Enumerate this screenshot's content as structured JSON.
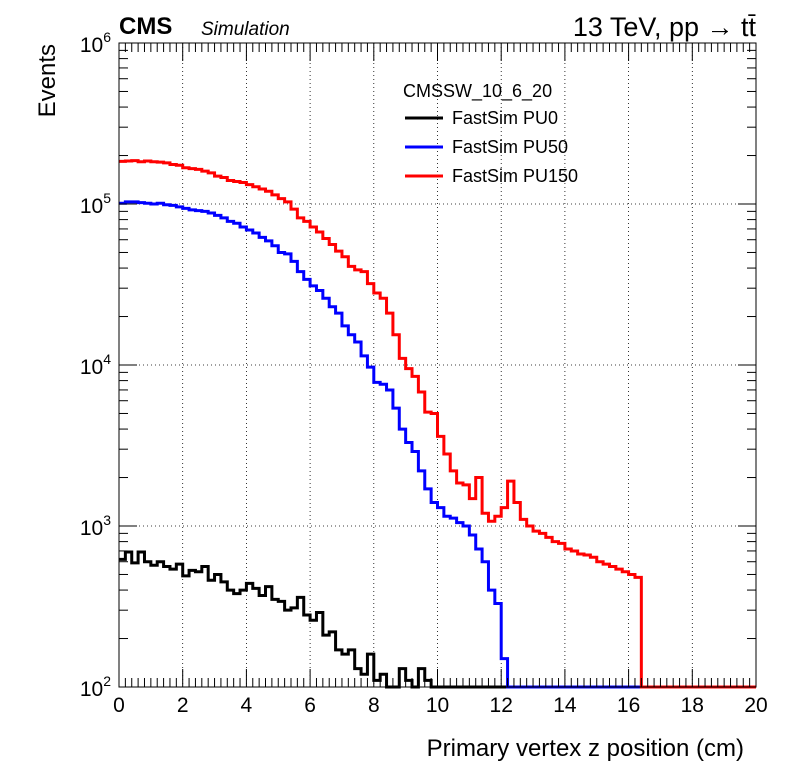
{
  "chart_data": {
    "type": "histogram",
    "experiment": "CMS",
    "experiment_note": "Simulation",
    "energy_label": "13 TeV, pp → tt̄",
    "xlabel": "Primary vertex z position (cm)",
    "ylabel": "Events",
    "xlim": [
      0,
      20
    ],
    "ylim": [
      100,
      1000000
    ],
    "yscale": "log",
    "grid": true,
    "x_ticks": [
      "0",
      "2",
      "4",
      "6",
      "8",
      "10",
      "12",
      "14",
      "16",
      "18",
      "20"
    ],
    "y_ticks": [
      {
        "base": "10",
        "exp": "2",
        "value": 100
      },
      {
        "base": "10",
        "exp": "3",
        "value": 1000
      },
      {
        "base": "10",
        "exp": "4",
        "value": 10000
      },
      {
        "base": "10",
        "exp": "5",
        "value": 100000
      },
      {
        "base": "10",
        "exp": "6",
        "value": 1000000
      }
    ],
    "legend_header": "CMSSW_10_6_20",
    "legend_position": "top-center",
    "bin_width": 0.2,
    "series": [
      {
        "name": "FastSim PU0",
        "color": "#000000",
        "values": [
          620,
          690,
          590,
          690,
          600,
          570,
          600,
          560,
          540,
          580,
          490,
          530,
          520,
          560,
          460,
          500,
          450,
          400,
          380,
          400,
          440,
          410,
          370,
          420,
          350,
          340,
          300,
          310,
          360,
          280,
          260,
          290,
          210,
          220,
          170,
          160,
          170,
          130,
          120,
          160,
          110,
          120,
          100,
          100,
          130,
          110,
          100,
          130,
          110,
          80
        ]
      },
      {
        "name": "FastSim PU50",
        "color": "#0000ff",
        "values": [
          101000,
          103000,
          103000,
          102000,
          101000,
          100000,
          101000,
          99000,
          98000,
          96000,
          94000,
          92000,
          91000,
          90000,
          88000,
          85000,
          82000,
          78000,
          76000,
          72000,
          69000,
          66000,
          62000,
          59000,
          55000,
          50000,
          49000,
          44000,
          38000,
          34000,
          31000,
          29000,
          26000,
          23000,
          21000,
          17500,
          15400,
          13900,
          11400,
          9700,
          7800,
          7600,
          7000,
          5400,
          4000,
          3300,
          2900,
          2200,
          1700,
          1400,
          1300,
          1150,
          1120,
          1050,
          1000,
          880,
          720,
          600,
          400,
          330,
          150,
          100,
          100
        ]
      },
      {
        "name": "FastSim PU150",
        "color": "#ff0000",
        "values": [
          184000,
          185000,
          186000,
          183000,
          185000,
          183000,
          182000,
          180000,
          176000,
          174000,
          168000,
          166000,
          164000,
          160000,
          156000,
          149000,
          146000,
          140000,
          138000,
          136000,
          132000,
          128000,
          124000,
          120000,
          114000,
          108000,
          103000,
          93000,
          82000,
          78000,
          72000,
          67000,
          61000,
          56000,
          51000,
          47000,
          41000,
          39000,
          38000,
          32000,
          28000,
          26000,
          21000,
          15400,
          11000,
          9500,
          8500,
          6800,
          5100,
          5000,
          3600,
          2800,
          2200,
          1850,
          1800,
          1480,
          2000,
          1200,
          1070,
          1150,
          1300,
          1900,
          1400,
          1100,
          1000,
          930,
          900,
          850,
          800,
          780,
          720,
          700,
          670,
          660,
          640,
          600,
          580,
          560,
          540,
          520,
          500,
          480
        ]
      }
    ]
  }
}
